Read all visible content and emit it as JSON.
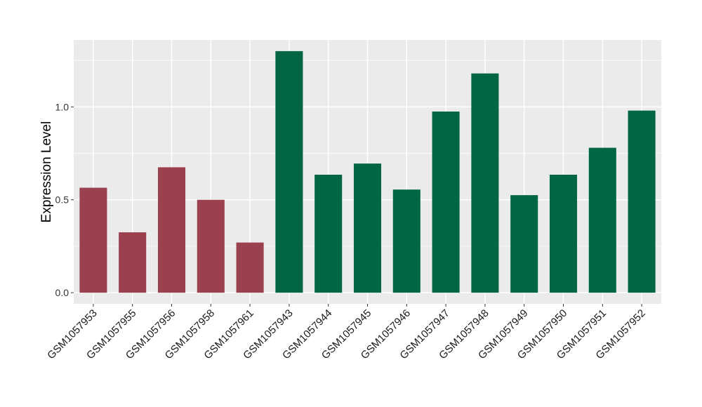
{
  "chart_data": {
    "type": "bar",
    "title": "",
    "xlabel": "",
    "ylabel": "Expression Level",
    "ylim": [
      -0.06,
      1.36
    ],
    "yticks": [
      0.0,
      0.5,
      1.0
    ],
    "ytick_labels": [
      "0.0",
      "0.5",
      "1.0"
    ],
    "grid": true,
    "legend": "none",
    "categories": [
      "GSM1057953",
      "GSM1057955",
      "GSM1057956",
      "GSM1057958",
      "GSM1057961",
      "GSM1057943",
      "GSM1057944",
      "GSM1057945",
      "GSM1057946",
      "GSM1057947",
      "GSM1057948",
      "GSM1057949",
      "GSM1057950",
      "GSM1057951",
      "GSM1057952"
    ],
    "values": [
      0.565,
      0.325,
      0.675,
      0.5,
      0.27,
      1.3,
      0.635,
      0.695,
      0.555,
      0.975,
      1.18,
      0.525,
      0.635,
      0.78,
      0.98
    ],
    "groups": [
      "g1",
      "g1",
      "g1",
      "g1",
      "g1",
      "g2",
      "g2",
      "g2",
      "g2",
      "g2",
      "g2",
      "g2",
      "g2",
      "g2",
      "g2"
    ],
    "colors": {
      "g1": "#9b404f",
      "g2": "#006644"
    },
    "panel_background": "#ebebeb",
    "grid_color": "#ffffff"
  }
}
